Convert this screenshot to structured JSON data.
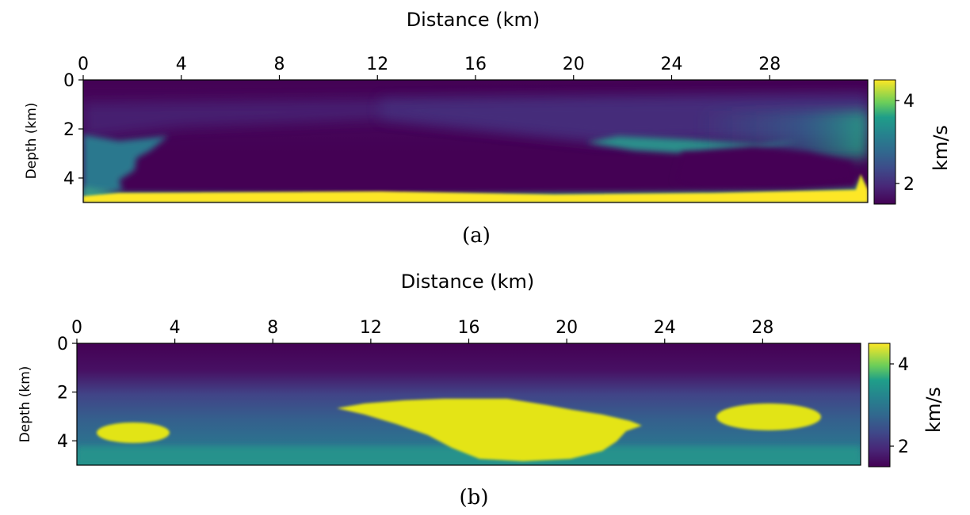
{
  "chart_data": [
    {
      "type": "heatmap",
      "caption": "(a)",
      "xlabel": "Distance (km)",
      "ylabel": "Depth (km)",
      "xlim": [
        0,
        32
      ],
      "ylim": [
        5,
        0
      ],
      "x_axis_position": "top",
      "xticks": [
        0,
        4,
        8,
        12,
        16,
        20,
        24,
        28
      ],
      "yticks": [
        0,
        2,
        4
      ],
      "grid": false,
      "colormap": "viridis",
      "colorbar": {
        "label": "km/s",
        "ticks": [
          2,
          4
        ],
        "range": [
          1.5,
          4.5
        ]
      },
      "features": [
        {
          "name": "background",
          "velocity_km_s": 1.6
        },
        {
          "name": "upper layer",
          "depth_range_km": [
            0.5,
            2.2
          ],
          "velocity_km_s": 1.9
        },
        {
          "name": "left-edge wedge",
          "x_range_km": [
            0,
            3.6
          ],
          "depth_range_km": [
            2.2,
            5
          ],
          "velocity_km_s": 2.6
        },
        {
          "name": "right high-velocity band",
          "x_range_km": [
            21,
            32
          ],
          "depth_range_km": [
            2.4,
            2.8
          ],
          "velocity_km_s": 2.7
        },
        {
          "name": "bottom boundary layer",
          "x_range_km": [
            0,
            32
          ],
          "depth_range_km": [
            4.7,
            5
          ],
          "velocity_km_s": 4.5
        }
      ]
    },
    {
      "type": "heatmap",
      "caption": "(b)",
      "xlabel": "Distance (km)",
      "ylabel": "Depth (km)",
      "xlim": [
        0,
        32
      ],
      "ylim": [
        5,
        0
      ],
      "x_axis_position": "top",
      "xticks": [
        0,
        4,
        8,
        12,
        16,
        20,
        24,
        28
      ],
      "yticks": [
        0,
        2,
        4
      ],
      "grid": false,
      "colormap": "viridis",
      "colorbar": {
        "label": "km/s",
        "ticks": [
          2,
          4
        ],
        "range": [
          1.5,
          4.5
        ]
      },
      "features": [
        {
          "name": "background gradient",
          "velocity_top_km_s": 1.6,
          "velocity_bottom_km_s": 3.0
        },
        {
          "name": "left anomaly",
          "center_km": [
            1.9,
            3.7
          ],
          "velocity_km_s": 4.4
        },
        {
          "name": "central anomaly",
          "x_range_km": [
            10.8,
            23
          ],
          "depth_range_km": [
            2.2,
            4.8
          ],
          "velocity_km_s": 4.4
        },
        {
          "name": "right anomaly",
          "center_km": [
            28,
            3.0
          ],
          "velocity_km_s": 4.4
        }
      ]
    }
  ]
}
